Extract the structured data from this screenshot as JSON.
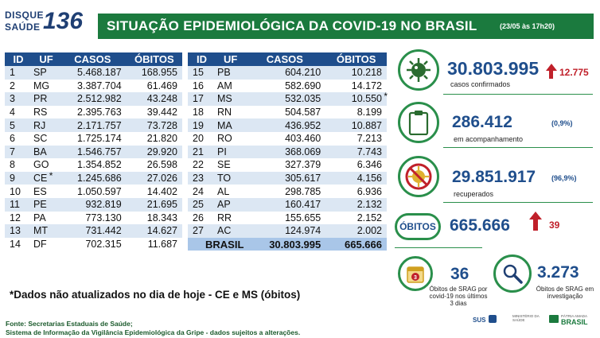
{
  "header": {
    "logo_line1": "DISQUE",
    "logo_line2": "SAÚDE",
    "logo_number": "136",
    "title": "SITUAÇÃO EPIDEMIOLÓGICA DA COVID-19 NO BRASIL",
    "date": "(23/05 às 17h20)"
  },
  "table": {
    "headers": [
      "ID",
      "UF",
      "CASOS",
      "ÓBITOS"
    ],
    "left_rows": [
      [
        "1",
        "SP",
        "5.468.187",
        "168.955"
      ],
      [
        "2",
        "MG",
        "3.387.704",
        "61.469"
      ],
      [
        "3",
        "PR",
        "2.512.982",
        "43.248"
      ],
      [
        "4",
        "RS",
        "2.395.763",
        "39.442"
      ],
      [
        "5",
        "RJ",
        "2.171.757",
        "73.728"
      ],
      [
        "6",
        "SC",
        "1.725.174",
        "21.820"
      ],
      [
        "7",
        "BA",
        "1.546.757",
        "29.920"
      ],
      [
        "8",
        "GO",
        "1.354.852",
        "26.598"
      ],
      [
        "9",
        "CE",
        "1.245.686",
        "27.026"
      ],
      [
        "10",
        "ES",
        "1.050.597",
        "14.402"
      ],
      [
        "11",
        "PE",
        "932.819",
        "21.695"
      ],
      [
        "12",
        "PA",
        "773.130",
        "18.343"
      ],
      [
        "13",
        "MT",
        "731.442",
        "14.627"
      ],
      [
        "14",
        "DF",
        "702.315",
        "11.687"
      ]
    ],
    "right_rows": [
      [
        "15",
        "PB",
        "604.210",
        "10.218"
      ],
      [
        "16",
        "AM",
        "582.690",
        "14.172"
      ],
      [
        "17",
        "MS",
        "532.035",
        "10.550"
      ],
      [
        "18",
        "RN",
        "504.587",
        "8.199"
      ],
      [
        "19",
        "MA",
        "436.952",
        "10.887"
      ],
      [
        "20",
        "RO",
        "403.460",
        "7.213"
      ],
      [
        "21",
        "PI",
        "368.069",
        "7.743"
      ],
      [
        "22",
        "SE",
        "327.379",
        "6.346"
      ],
      [
        "23",
        "TO",
        "305.617",
        "4.156"
      ],
      [
        "24",
        "AL",
        "298.785",
        "6.936"
      ],
      [
        "25",
        "AP",
        "160.417",
        "2.132"
      ],
      [
        "26",
        "RR",
        "155.655",
        "2.152"
      ],
      [
        "27",
        "AC",
        "124.974",
        "2.002"
      ]
    ],
    "total": {
      "label": "BRASIL",
      "casos": "30.803.995",
      "obitos": "665.666"
    }
  },
  "note": "*Dados não atualizados no dia de hoje - CE e MS (óbitos)",
  "fonte": {
    "line1": "Fonte: Secretarias Estaduais de Saúde;",
    "line2": "Sistema de Informação da Vigilância Epidemiológica da Gripe - dados sujeitos a alterações."
  },
  "stats": {
    "confirmados": {
      "value": "30.803.995",
      "label": "casos confirmados",
      "delta": "12.775",
      "icon": "virus-icon"
    },
    "acompanhamento": {
      "value": "286.412",
      "label": "em acompanhamento",
      "pct": "(0,9%)",
      "icon": "clipboard-icon"
    },
    "recuperados": {
      "value": "29.851.917",
      "label": "recuperados",
      "pct": "(96,9%)",
      "icon": "no-virus-icon"
    },
    "obitos": {
      "badge": "ÓBITOS",
      "value": "665.666",
      "delta": "39"
    },
    "srag_3dias": {
      "value": "36",
      "label1": "Óbitos de SRAG por",
      "label2": "covid-19 nos últimos",
      "label3": "3 dias",
      "icon_number": "3"
    },
    "srag_investigacao": {
      "value": "3.273",
      "label1": "Óbitos de SRAG em",
      "label2": "investigação",
      "icon": "magnifier-icon"
    }
  },
  "footer_logos": {
    "sus": "SUS",
    "ministerio": "MINISTÉRIO DA SAÚDE",
    "brasil": "BRASIL",
    "brasil_tag": "PÁTRIA AMADA"
  },
  "colors": {
    "green": "#1b7a3e",
    "blue": "#1f4e8c",
    "red": "#c0202a",
    "row_alt": "#dce7f3"
  }
}
